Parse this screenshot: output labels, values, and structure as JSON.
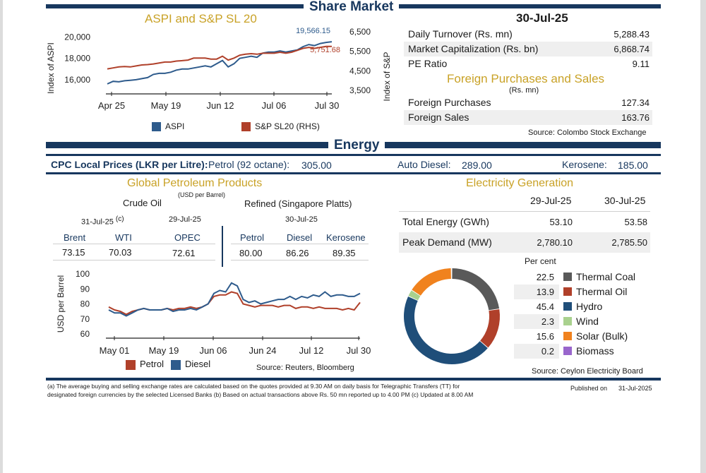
{
  "share_market": {
    "title": "Share Market",
    "chart_title": "ASPI and S&P SL 20",
    "date": "30-Jul-25",
    "rows": [
      {
        "label": "Daily Turnover (Rs. mn)",
        "value": "5,288.43"
      },
      {
        "label": "Market Capitalization (Rs. bn)",
        "value": "6,868.74"
      },
      {
        "label": "PE Ratio",
        "value": "9.11"
      }
    ],
    "foreign_title": "Foreign Purchases and Sales",
    "foreign_unit": "(Rs. mn)",
    "foreign_rows": [
      {
        "label": "Foreign Purchases",
        "value": "127.34"
      },
      {
        "label": "Foreign Sales",
        "value": "163.76"
      }
    ],
    "source": "Source: Colombo Stock Exchange"
  },
  "energy": {
    "title": "Energy",
    "cpc_label": "CPC Local Prices (LKR per Litre):",
    "petrol_label": "Petrol (92 octane):",
    "petrol_value": "305.00",
    "diesel_label": "Auto Diesel:",
    "diesel_value": "289.00",
    "kerosene_label": "Kerosene:",
    "kerosene_value": "185.00"
  },
  "petroleum": {
    "title": "Global Petroleum Products",
    "unit": "(USD per Barrel)",
    "crude_label": "Crude Oil",
    "refined_label": "Refined (Singapore Platts)",
    "date1": "31-Jul-25",
    "date1_note": "(c)",
    "date2": "29-Jul-25",
    "date3": "30-Jul-25",
    "headers": [
      "Brent",
      "WTI",
      "OPEC",
      "Petrol",
      "Diesel",
      "Kerosene"
    ],
    "values": [
      "73.15",
      "70.03",
      "72.61",
      "80.00",
      "86.26",
      "89.35"
    ],
    "source": "Source: Reuters, Bloomberg"
  },
  "electricity": {
    "title": "Electricity Generation",
    "col1": "29-Jul-25",
    "col2": "30-Jul-25",
    "rows": [
      {
        "label": "Total Energy (GWh)",
        "v1": "53.10",
        "v2": "53.58"
      },
      {
        "label": "Peak Demand (MW)",
        "v1": "2,780.10",
        "v2": "2,785.50"
      }
    ],
    "percent_label": "Per cent",
    "source": "Source: Ceylon Electricity Board"
  },
  "footnote": {
    "line1": "(a) The average buying and selling exchange rates are calculated based on the quotes provided at 9.30 AM on daily basis for Telegraphic Transfers (TT) for",
    "line2": "designated foreign currencies by the selected Licensed Banks   (b) Based on actual transactions above Rs. 50 mn reported up to 4.00 PM    (c) Updated at 8.00 AM",
    "published_label": "Published on",
    "published_date": "31-Jul-2025"
  },
  "chart_data": [
    {
      "type": "line",
      "title": "ASPI and S&P SL 20",
      "ylabel": "Index of ASPI",
      "y2label": "Index of S&P",
      "x_ticks": [
        "Apr 25",
        "May 19",
        "Jun 12",
        "Jul 06",
        "Jul 30"
      ],
      "y_ticks": [
        "16,000",
        "18,000",
        "20,000"
      ],
      "y2_ticks": [
        "3,500",
        "4,500",
        "5,500",
        "6,500"
      ],
      "ylim": [
        15000,
        20500
      ],
      "y2lim": [
        3500,
        6500
      ],
      "end_labels": {
        "aspi": "19,566.15",
        "sp": "5,751.68"
      },
      "series": [
        {
          "name": "ASPI",
          "color": "#2e5b8c",
          "axis": "left",
          "values": [
            15600,
            15850,
            15800,
            15900,
            15950,
            16000,
            16100,
            16200,
            16500,
            16600,
            16600,
            16700,
            16900,
            17000,
            17000,
            17100,
            17200,
            17300,
            17200,
            17500,
            17800,
            17200,
            17500,
            18000,
            18100,
            18200,
            18100,
            18500,
            18600,
            18600,
            18700,
            18600,
            18700,
            18800,
            19100,
            19300,
            19200,
            19400,
            19500,
            19566
          ]
        },
        {
          "name": "S&P SL20 (RHS)",
          "color": "#b0402a",
          "axis": "right",
          "values": [
            4600,
            4650,
            4700,
            4720,
            4700,
            4750,
            4800,
            4820,
            4850,
            4900,
            4950,
            4950,
            5000,
            5020,
            5050,
            5150,
            5150,
            5150,
            5100,
            5100,
            5250,
            5050,
            5150,
            5300,
            5350,
            5380,
            5350,
            5400,
            5400,
            5400,
            5450,
            5400,
            5450,
            5550,
            5650,
            5700,
            5650,
            5700,
            5750,
            5752
          ]
        }
      ]
    },
    {
      "type": "line",
      "ylabel": "USD per Barrel",
      "x_ticks": [
        "May 01",
        "May 19",
        "Jun 06",
        "Jun 24",
        "Jul 12",
        "Jul 30"
      ],
      "y_ticks": [
        "60",
        "70",
        "80",
        "90",
        "100"
      ],
      "ylim": [
        60,
        100
      ],
      "series": [
        {
          "name": "Petrol",
          "color": "#b0402a",
          "values": [
            78,
            76,
            75,
            73,
            75,
            76,
            77,
            76,
            76,
            76,
            77,
            76,
            77,
            77,
            78,
            77,
            78,
            80,
            85,
            86,
            86,
            88,
            87,
            80,
            79,
            78,
            79,
            79,
            79,
            78,
            79,
            79,
            77,
            78,
            78,
            77,
            78,
            77,
            77,
            77,
            76,
            77,
            76,
            81
          ]
        },
        {
          "name": "Diesel",
          "color": "#2e5b8c",
          "values": [
            76,
            74,
            74,
            72,
            74,
            76,
            77,
            76,
            76,
            76,
            77,
            75,
            76,
            76,
            77,
            76,
            78,
            80,
            87,
            89,
            88,
            94,
            92,
            83,
            81,
            82,
            80,
            81,
            82,
            83,
            83,
            85,
            83,
            85,
            84,
            86,
            85,
            88,
            85,
            86,
            86,
            85,
            85,
            87
          ]
        }
      ]
    },
    {
      "type": "pie",
      "labels": [
        "Thermal Coal",
        "Thermal Oil",
        "Hydro",
        "Wind",
        "Solar (Bulk)",
        "Biomass"
      ],
      "display_values": [
        "22.5",
        "13.9",
        "45.4",
        "2.3",
        "15.6",
        "0.2"
      ],
      "values": [
        22.5,
        13.9,
        45.4,
        2.3,
        15.6,
        0.2
      ],
      "colors": [
        "#595959",
        "#b0402a",
        "#1f4e79",
        "#a9d18e",
        "#f0821e",
        "#9966cc"
      ]
    }
  ]
}
